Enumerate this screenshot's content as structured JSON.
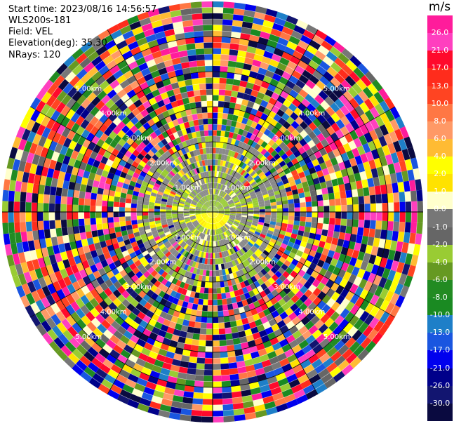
{
  "header": {
    "start_time": "Start time: 2023/08/16 14:56:57",
    "instrument": "WLS200s-181",
    "field": "Field: VEL",
    "elevation": "Elevation(deg): 35.30",
    "nrays": "NRays: 120"
  },
  "chart_data": {
    "type": "heatmap",
    "plot_kind": "polar PPI (plan position indicator)",
    "field": "VEL",
    "units": "m/s",
    "nrays": 120,
    "elevation_deg": 35.3,
    "range_rings_km": [
      1.0,
      2.0,
      3.0,
      4.0,
      5.0
    ],
    "range_ring_labels": [
      "1.00km",
      "2.00km",
      "3.00km",
      "4.00km",
      "5.00km"
    ],
    "max_range_km": 6.0,
    "spoke_count": 12,
    "colorbar": {
      "unit_label": "m/s",
      "ticks": [
        "26.0",
        "21.0",
        "17.0",
        "13.0",
        "10.0",
        "8.0",
        "6.0",
        "4.0",
        "2.0",
        "1.0",
        "0.0",
        "-1.0",
        "-2.0",
        "-4.0",
        "-6.0",
        "-8.0",
        "-10.0",
        "-13.0",
        "-17.0",
        "-21.0",
        "-26.0",
        "-30.0"
      ],
      "colors": [
        "#ff1c9b",
        "#ff3fbf",
        "#ff0a2c",
        "#ff2c1c",
        "#ff4422",
        "#ff7744",
        "#ff9966",
        "#ffbb33",
        "#ffff00",
        "#ffe200",
        "#ffffcc",
        "#777777",
        "#666666",
        "#99cc33",
        "#669922",
        "#228b22",
        "#1a8a22",
        "#1e7fc8",
        "#1a56e0",
        "#0000ee",
        "#00008a",
        "#121570",
        "#0a0a40"
      ]
    }
  }
}
